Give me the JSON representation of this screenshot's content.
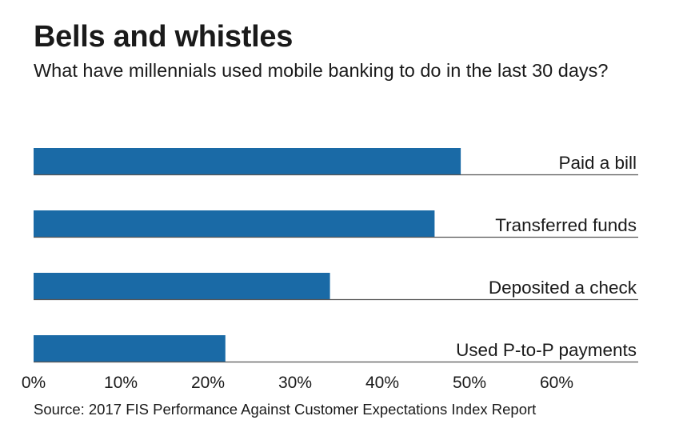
{
  "title": "Bells and whistles",
  "subtitle": "What have millennials used mobile banking to do in the last 30 days?",
  "source": "Source: 2017 FIS Performance Against Customer Expectations Index Report",
  "colors": {
    "bar": "#1a6aa6",
    "baseline": "#555555",
    "text": "#1a1a1a"
  },
  "chart_data": {
    "type": "bar",
    "orientation": "horizontal",
    "title": "Bells and whistles",
    "subtitle": "What have millennials used mobile banking to do in the last 30 days?",
    "categories": [
      "Paid a bill",
      "Transferred funds",
      "Deposited a check",
      "Used P-to-P payments"
    ],
    "values": [
      49,
      46,
      34,
      22
    ],
    "unit": "%",
    "xlim": [
      0,
      70
    ],
    "xticks": [
      0,
      10,
      20,
      30,
      40,
      50,
      60
    ],
    "xtick_labels": [
      "0%",
      "10%",
      "20%",
      "30%",
      "40%",
      "50%",
      "60%"
    ],
    "xlabel": "",
    "ylabel": "",
    "grid": false,
    "label_position": "right"
  }
}
